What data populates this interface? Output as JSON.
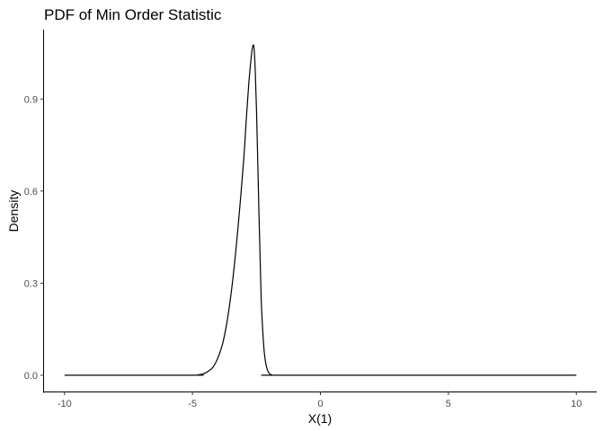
{
  "chart_data": {
    "type": "line",
    "title": "PDF of Min Order Statistic",
    "xlabel": "X(1)",
    "ylabel": "Density",
    "xlim": [
      -10.8,
      10.8
    ],
    "ylim": [
      -0.053,
      1.126
    ],
    "x_ticks": [
      -10,
      -5,
      0,
      5,
      10
    ],
    "x_tick_labels": [
      "-10",
      "-5",
      "0",
      "5",
      "10"
    ],
    "y_ticks": [
      0.0,
      0.3,
      0.6,
      0.9
    ],
    "y_tick_labels": [
      "0.0",
      "0.3",
      "0.6",
      "0.9"
    ],
    "grid": false,
    "legend": "none",
    "line_color": "#000000",
    "series": [
      {
        "x": [
          -10,
          -5,
          -4.8,
          -4.6,
          -4.4,
          -4.2,
          -4.0,
          -3.8,
          -3.6,
          -3.4,
          -3.2,
          -3.0,
          -2.9,
          -2.8,
          -2.7,
          -2.65,
          -2.6,
          -2.55,
          -2.5,
          -2.45,
          -2.4,
          -2.35,
          -2.3,
          -2.2,
          -2.1,
          -2.0,
          -1.9,
          -1.8,
          -1.6,
          -1.4,
          10
        ],
        "y": [
          0.0,
          0.0,
          0.001,
          0.004,
          0.012,
          0.026,
          0.058,
          0.11,
          0.2,
          0.33,
          0.5,
          0.7,
          0.83,
          0.95,
          1.04,
          1.07,
          1.07,
          1.0,
          0.87,
          0.7,
          0.52,
          0.36,
          0.22,
          0.08,
          0.025,
          0.006,
          0.001,
          0.0,
          0.0,
          0.0,
          0.0
        ]
      }
    ]
  }
}
